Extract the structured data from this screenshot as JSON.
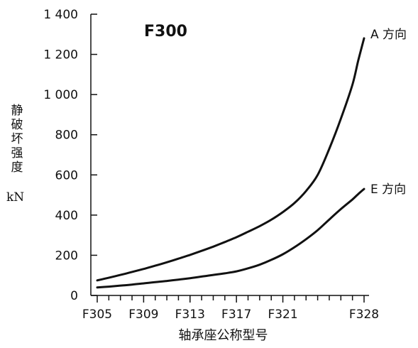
{
  "chart_data": {
    "type": "line",
    "title": "F300",
    "xlabel": "轴承座公称型号",
    "ylabel_chars": [
      "静",
      "破",
      "坏",
      "强",
      "度"
    ],
    "yunit": "kN",
    "ylim": [
      0,
      1400
    ],
    "yticks": [
      0,
      200,
      400,
      600,
      800,
      1000,
      1200,
      1400
    ],
    "ytick_labels": [
      "0",
      "200",
      "400",
      "600",
      "800",
      "1 000",
      "1 200",
      "1 400"
    ],
    "x_index_range": [
      305,
      328
    ],
    "x_label_positions": [
      305,
      309,
      313,
      317,
      321,
      328
    ],
    "x_labels": [
      "F305",
      "F309",
      "F313",
      "F317",
      "F321",
      "F328"
    ],
    "series": [
      {
        "name": "A 方向",
        "x": [
          305,
          306,
          307,
          308,
          309,
          310,
          311,
          312,
          313,
          314,
          315,
          316,
          317,
          318,
          319,
          320,
          321,
          322,
          323,
          324,
          325,
          326,
          327,
          327.5,
          328
        ],
        "y": [
          75,
          88,
          102,
          117,
          132,
          148,
          165,
          183,
          202,
          222,
          243,
          266,
          290,
          317,
          345,
          377,
          415,
          460,
          520,
          600,
          730,
          880,
          1050,
          1170,
          1280
        ]
      },
      {
        "name": "E 方向",
        "x": [
          305,
          306,
          307,
          308,
          309,
          310,
          311,
          312,
          313,
          314,
          315,
          316,
          317,
          318,
          319,
          320,
          321,
          322,
          323,
          324,
          325,
          326,
          327,
          327.5,
          328
        ],
        "y": [
          40,
          44,
          49,
          54,
          60,
          66,
          72,
          79,
          86,
          94,
          102,
          110,
          120,
          135,
          153,
          177,
          205,
          240,
          280,
          325,
          378,
          430,
          478,
          505,
          530
        ]
      }
    ]
  }
}
